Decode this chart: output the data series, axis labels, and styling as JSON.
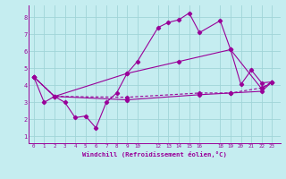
{
  "xlabel": "Windchill (Refroidissement éolien,°C)",
  "background_color": "#c5edf0",
  "grid_color": "#a0d4d8",
  "line_color": "#990099",
  "ylim": [
    0.6,
    8.7
  ],
  "xlim": [
    -0.5,
    23.8
  ],
  "xtick_vals": [
    0,
    1,
    2,
    3,
    4,
    5,
    6,
    7,
    8,
    9,
    10,
    12,
    13,
    14,
    15,
    16,
    18,
    19,
    20,
    21,
    22,
    23
  ],
  "xtick_labels": [
    "0",
    "1",
    "2",
    "3",
    "4",
    "5",
    "6",
    "7",
    "8",
    "9",
    "10",
    "12",
    "13",
    "14",
    "15",
    "16",
    "18",
    "19",
    "20",
    "21",
    "22",
    "23"
  ],
  "yticks": [
    1,
    2,
    3,
    4,
    5,
    6,
    7,
    8
  ],
  "line1_x": [
    0,
    1,
    2,
    3,
    4,
    5,
    6,
    7,
    8,
    9,
    10,
    12,
    13,
    14,
    15,
    16,
    18,
    19,
    20,
    21,
    22,
    23
  ],
  "line1_y": [
    4.5,
    3.0,
    3.35,
    3.0,
    2.1,
    2.2,
    1.5,
    3.0,
    3.55,
    4.7,
    5.4,
    7.4,
    7.7,
    7.85,
    8.25,
    7.1,
    7.8,
    6.1,
    4.05,
    4.9,
    4.15,
    4.2
  ],
  "line2_x": [
    0,
    2,
    9,
    16,
    19,
    22,
    23
  ],
  "line2_y": [
    4.5,
    3.35,
    3.3,
    3.55,
    3.55,
    3.85,
    4.2
  ],
  "line3_x": [
    0,
    2,
    9,
    16,
    19,
    22,
    23
  ],
  "line3_y": [
    4.5,
    3.35,
    3.15,
    3.45,
    3.55,
    3.65,
    4.2
  ],
  "line4_x": [
    0,
    2,
    9,
    14,
    19,
    22,
    23
  ],
  "line4_y": [
    4.5,
    3.35,
    4.7,
    5.4,
    6.1,
    3.8,
    4.2
  ]
}
